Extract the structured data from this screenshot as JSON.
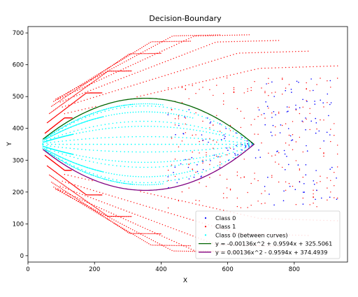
{
  "chart_data": {
    "type": "scatter",
    "title": "Decision-Boundary",
    "xlabel": "X",
    "ylabel": "Y",
    "xlim": [
      0,
      960
    ],
    "ylim": [
      -20,
      720
    ],
    "x_ticks": [
      0,
      200,
      400,
      600,
      800
    ],
    "y_ticks": [
      0,
      100,
      200,
      300,
      400,
      500,
      600,
      700
    ],
    "grid": false,
    "legend_position": "lower-right",
    "series": [
      {
        "name": "Class 0",
        "kind": "scatter",
        "color": "#0000ff",
        "description_region": "between upper and lower boundary curves right of their crossing, plus a few points mixed into the red fan",
        "x_range": [
          400,
          930
        ],
        "y_range": [
          150,
          560
        ]
      },
      {
        "name": "Class 1",
        "kind": "scatter",
        "color": "#ff0000",
        "x_range": [
          45,
          930
        ],
        "y_range": [
          0,
          705
        ]
      },
      {
        "name": "Class 0 (between curves)",
        "kind": "scatter",
        "color": "#00ffff",
        "x_range": [
          45,
          680
        ],
        "y_range": [
          265,
          440
        ]
      },
      {
        "name": "y = -0.00136x^2 + 0.9594x + 325.5061",
        "kind": "line",
        "color": "#006400",
        "coefficients": [
          -0.00136,
          0.9594,
          325.5061
        ],
        "x_range": [
          45,
          680
        ]
      },
      {
        "name": "y = 0.00136x^2 - 0.9594x + 374.4939",
        "kind": "line",
        "color": "#800080",
        "coefficients": [
          0.00136,
          -0.9594,
          374.4939
        ],
        "x_range": [
          45,
          680
        ]
      }
    ]
  }
}
